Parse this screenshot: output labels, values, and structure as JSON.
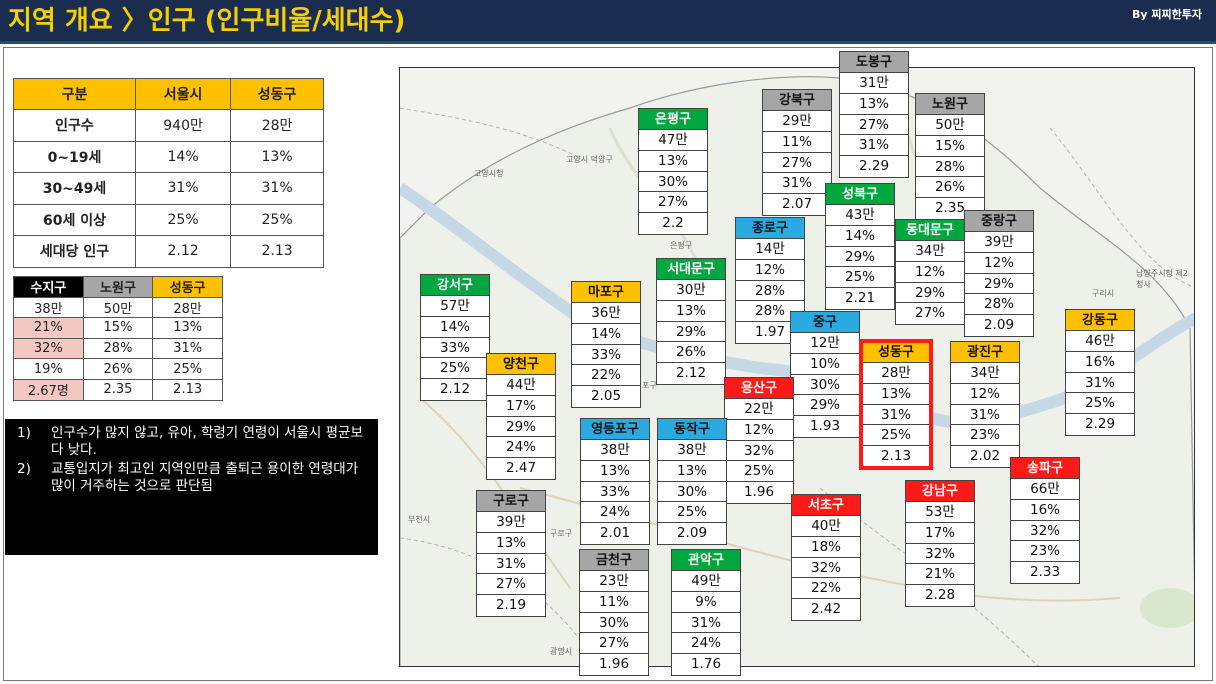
{
  "header": {
    "title": "지역 개요 〉인구 (인구비율/세대수)",
    "brand": "By 찌찌한투자"
  },
  "summary_table": {
    "headers": [
      "구분",
      "서울시",
      "성동구"
    ],
    "rows": [
      {
        "label": "인구수",
        "seoul": "940만",
        "seongdong": "28만"
      },
      {
        "label": "0~19세",
        "seoul": "14%",
        "seongdong": "13%"
      },
      {
        "label": "30~49세",
        "seoul": "31%",
        "seongdong": "31%"
      },
      {
        "label": "60세 이상",
        "seoul": "25%",
        "seongdong": "25%"
      },
      {
        "label": "세대당 인구",
        "seoul": "2.12",
        "seongdong": "2.13"
      }
    ]
  },
  "compare_table": {
    "headers": [
      "수지구",
      "노원구",
      "성동구"
    ],
    "rows": [
      [
        "38만",
        "50만",
        "28만"
      ],
      [
        "21%",
        "15%",
        "13%"
      ],
      [
        "32%",
        "28%",
        "31%"
      ],
      [
        "19%",
        "26%",
        "25%"
      ],
      [
        "2.67명",
        "2.35",
        "2.13"
      ]
    ]
  },
  "notes": [
    {
      "num": "1)",
      "text": "인구수가 많지 않고, 유아, 학령기 연령이 서울시 평균보다 낮다."
    },
    {
      "num": "2)",
      "text": "교통입지가 최고인 지역인만큼 출퇴근 용이한 연령대가 많이 거주하는 것으로 판단됨"
    }
  ],
  "map_labels": [
    "고양시 덕양구",
    "고양시청",
    "은평구",
    "부천시",
    "구로구",
    "광명시",
    "남양주시청 제2청사",
    "구리시",
    "포구"
  ],
  "districts": [
    {
      "name": "도봉구",
      "color": "gray",
      "values": [
        "31만",
        "13%",
        "27%",
        "31%",
        "2.29"
      ]
    },
    {
      "name": "강북구",
      "color": "gray",
      "values": [
        "29만",
        "11%",
        "27%",
        "31%",
        "2.07"
      ]
    },
    {
      "name": "노원구",
      "color": "gray",
      "values": [
        "50만",
        "15%",
        "28%",
        "26%",
        "2.35"
      ]
    },
    {
      "name": "은평구",
      "color": "green",
      "values": [
        "47만",
        "13%",
        "30%",
        "27%",
        "2.2"
      ]
    },
    {
      "name": "성북구",
      "color": "green",
      "values": [
        "43만",
        "14%",
        "29%",
        "25%",
        "2.21"
      ]
    },
    {
      "name": "종로구",
      "color": "blue",
      "values": [
        "14만",
        "12%",
        "28%",
        "28%",
        "1.97"
      ]
    },
    {
      "name": "동대문구",
      "color": "green",
      "values": [
        "34만",
        "12%",
        "29%",
        "27%"
      ]
    },
    {
      "name": "중랑구",
      "color": "gray",
      "values": [
        "39만",
        "12%",
        "29%",
        "28%",
        "2.09"
      ]
    },
    {
      "name": "서대문구",
      "color": "green",
      "values": [
        "30만",
        "13%",
        "29%",
        "26%",
        "2.12"
      ]
    },
    {
      "name": "마포구",
      "color": "orange",
      "values": [
        "36만",
        "14%",
        "33%",
        "22%",
        "2.05"
      ]
    },
    {
      "name": "강서구",
      "color": "green",
      "values": [
        "57만",
        "14%",
        "33%",
        "25%",
        "2.12"
      ]
    },
    {
      "name": "중구",
      "color": "blue",
      "values": [
        "12만",
        "10%",
        "30%",
        "29%",
        "1.93"
      ]
    },
    {
      "name": "성동구",
      "color": "orange",
      "values": [
        "28만",
        "13%",
        "31%",
        "25%",
        "2.13"
      ]
    },
    {
      "name": "광진구",
      "color": "orange",
      "values": [
        "34만",
        "12%",
        "31%",
        "23%",
        "2.02"
      ]
    },
    {
      "name": "강동구",
      "color": "orange",
      "values": [
        "46만",
        "16%",
        "31%",
        "25%",
        "2.29"
      ]
    },
    {
      "name": "양천구",
      "color": "orange",
      "values": [
        "44만",
        "17%",
        "29%",
        "24%",
        "2.47"
      ]
    },
    {
      "name": "용산구",
      "color": "red",
      "values": [
        "22만",
        "12%",
        "32%",
        "25%",
        "1.96"
      ]
    },
    {
      "name": "영등포구",
      "color": "blue",
      "values": [
        "38만",
        "13%",
        "33%",
        "24%",
        "2.01"
      ]
    },
    {
      "name": "동작구",
      "color": "blue",
      "values": [
        "38만",
        "13%",
        "30%",
        "25%",
        "2.09"
      ]
    },
    {
      "name": "송파구",
      "color": "red",
      "values": [
        "66만",
        "16%",
        "32%",
        "23%",
        "2.33"
      ]
    },
    {
      "name": "서초구",
      "color": "red",
      "values": [
        "40만",
        "18%",
        "32%",
        "22%",
        "2.42"
      ]
    },
    {
      "name": "강남구",
      "color": "red",
      "values": [
        "53만",
        "17%",
        "32%",
        "21%",
        "2.28"
      ]
    },
    {
      "name": "구로구",
      "color": "gray",
      "values": [
        "39만",
        "13%",
        "31%",
        "27%",
        "2.19"
      ]
    },
    {
      "name": "금천구",
      "color": "gray",
      "values": [
        "23만",
        "11%",
        "30%",
        "27%",
        "1.96"
      ]
    },
    {
      "name": "관악구",
      "color": "green",
      "values": [
        "49만",
        "9%",
        "31%",
        "24%",
        "1.76"
      ]
    }
  ]
}
